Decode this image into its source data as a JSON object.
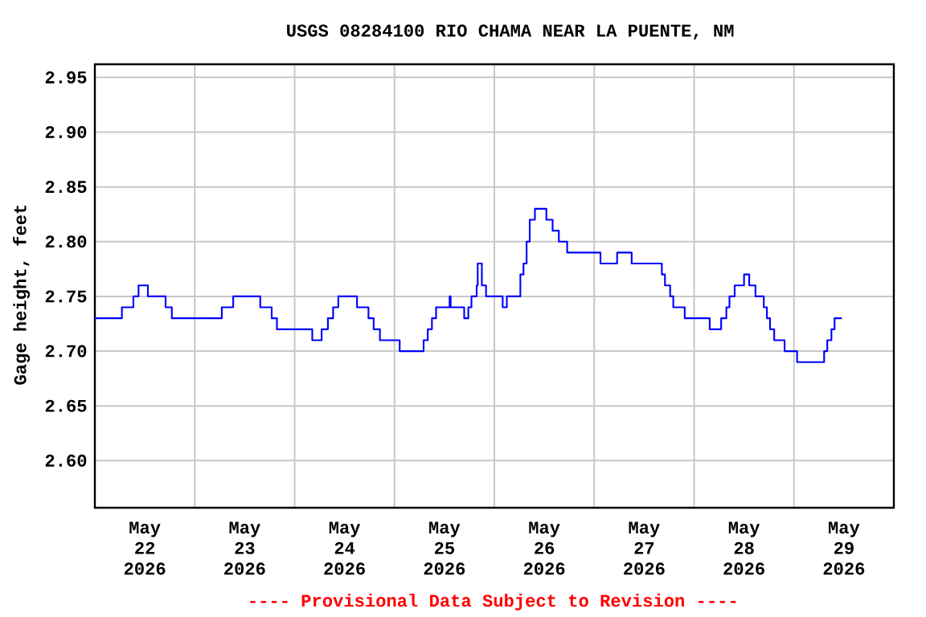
{
  "chart_data": {
    "type": "step",
    "title": "USGS 08284100 RIO CHAMA NEAR LA PUENTE, NM",
    "ylabel": "Gage height, feet",
    "annotations": [
      "---- Provisional Data Subject to Revision ----"
    ],
    "grid": true,
    "xlim": [
      "2026-05-22T00:00",
      "2026-05-30T00:00"
    ],
    "ylim": [
      2.557,
      2.962
    ],
    "yticks": [
      {
        "value": 2.6,
        "label": "2.60"
      },
      {
        "value": 2.65,
        "label": "2.65"
      },
      {
        "value": 2.7,
        "label": "2.70"
      },
      {
        "value": 2.75,
        "label": "2.75"
      },
      {
        "value": 2.8,
        "label": "2.80"
      },
      {
        "value": 2.85,
        "label": "2.85"
      },
      {
        "value": 2.9,
        "label": "2.90"
      },
      {
        "value": 2.95,
        "label": "2.95"
      }
    ],
    "xticks": [
      {
        "value": "2026-05-23T00:00",
        "label": null
      },
      {
        "value": "2026-05-24T00:00",
        "label": null
      },
      {
        "value": "2026-05-25T00:00",
        "label": null
      },
      {
        "value": "2026-05-26T00:00",
        "label": null
      },
      {
        "value": "2026-05-27T00:00",
        "label": null
      },
      {
        "value": "2026-05-28T00:00",
        "label": null
      },
      {
        "value": "2026-05-29T00:00",
        "label": null
      },
      {
        "value": "2026-05-22T12:00",
        "label": "May 22 2026"
      },
      {
        "value": "2026-05-23T12:00",
        "label": "May 23 2026"
      },
      {
        "value": "2026-05-24T12:00",
        "label": "May 24 2026"
      },
      {
        "value": "2026-05-25T12:00",
        "label": "May 25 2026"
      },
      {
        "value": "2026-05-26T12:00",
        "label": "May 26 2026"
      },
      {
        "value": "2026-05-27T12:00",
        "label": "May 27 2026"
      },
      {
        "value": "2026-05-28T12:00",
        "label": "May 28 2026"
      },
      {
        "value": "2026-05-29T12:00",
        "label": "May 29 2026"
      }
    ],
    "x": [
      "2026-05-22T00:00",
      "2026-05-22T06:30",
      "2026-05-22T09:15",
      "2026-05-22T10:30",
      "2026-05-22T12:45",
      "2026-05-22T17:00",
      "2026-05-22T18:30",
      "2026-05-23T06:30",
      "2026-05-23T09:15",
      "2026-05-23T15:45",
      "2026-05-23T18:30",
      "2026-05-23T19:45",
      "2026-05-24T04:15",
      "2026-05-24T06:30",
      "2026-05-24T08:00",
      "2026-05-24T09:15",
      "2026-05-24T10:30",
      "2026-05-24T15:00",
      "2026-05-24T17:45",
      "2026-05-24T19:00",
      "2026-05-24T20:30",
      "2026-05-25T01:15",
      "2026-05-25T07:00",
      "2026-05-25T08:00",
      "2026-05-25T09:00",
      "2026-05-25T10:00",
      "2026-05-25T13:15",
      "2026-05-25T13:30",
      "2026-05-25T16:45",
      "2026-05-25T17:45",
      "2026-05-25T18:30",
      "2026-05-25T19:45",
      "2026-05-25T20:00",
      "2026-05-25T21:00",
      "2026-05-25T22:00",
      "2026-05-26T02:00",
      "2026-05-26T03:00",
      "2026-05-26T06:15",
      "2026-05-26T07:00",
      "2026-05-26T07:45",
      "2026-05-26T08:30",
      "2026-05-26T09:45",
      "2026-05-26T12:30",
      "2026-05-26T14:00",
      "2026-05-26T15:30",
      "2026-05-26T17:30",
      "2026-05-27T01:30",
      "2026-05-27T05:30",
      "2026-05-27T09:00",
      "2026-05-27T16:15",
      "2026-05-27T17:00",
      "2026-05-27T18:15",
      "2026-05-27T19:00",
      "2026-05-27T21:45",
      "2026-05-28T03:45",
      "2026-05-28T06:30",
      "2026-05-28T07:45",
      "2026-05-28T08:30",
      "2026-05-28T09:45",
      "2026-05-28T12:00",
      "2026-05-28T13:15",
      "2026-05-28T14:45",
      "2026-05-28T16:45",
      "2026-05-28T17:30",
      "2026-05-28T18:15",
      "2026-05-28T19:15",
      "2026-05-28T21:45",
      "2026-05-29T00:45",
      "2026-05-29T07:15",
      "2026-05-29T08:00",
      "2026-05-29T09:00",
      "2026-05-29T09:45",
      "2026-05-29T11:30"
    ],
    "series": [
      {
        "color": "#0000ff",
        "values": [
          2.73,
          2.74,
          2.75,
          2.76,
          2.75,
          2.74,
          2.73,
          2.74,
          2.75,
          2.74,
          2.73,
          2.72,
          2.71,
          2.72,
          2.73,
          2.74,
          2.75,
          2.74,
          2.73,
          2.72,
          2.71,
          2.7,
          2.71,
          2.72,
          2.73,
          2.74,
          2.75,
          2.74,
          2.73,
          2.74,
          2.75,
          2.76,
          2.78,
          2.76,
          2.75,
          2.74,
          2.75,
          2.77,
          2.78,
          2.8,
          2.82,
          2.83,
          2.82,
          2.81,
          2.8,
          2.79,
          2.78,
          2.79,
          2.78,
          2.77,
          2.76,
          2.75,
          2.74,
          2.73,
          2.72,
          2.73,
          2.74,
          2.75,
          2.76,
          2.77,
          2.76,
          2.75,
          2.74,
          2.73,
          2.72,
          2.71,
          2.7,
          2.69,
          2.7,
          2.71,
          2.72,
          2.73,
          2.73
        ]
      }
    ]
  }
}
